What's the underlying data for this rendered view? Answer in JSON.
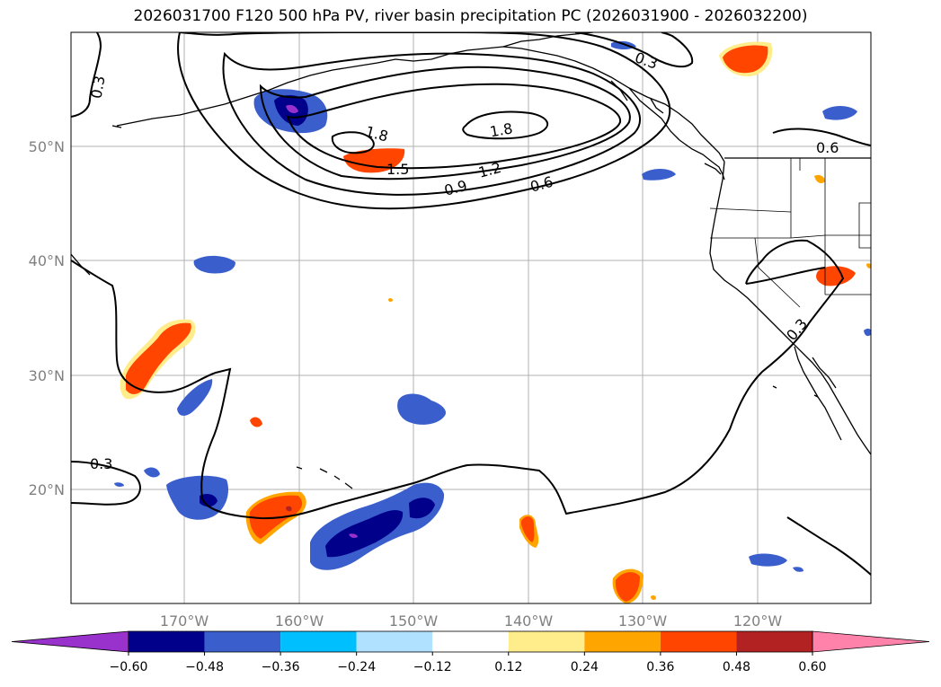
{
  "title": "2026031700 F120 500 hPa PV, river basin precipitation PC (2026031900 - 2026032200)",
  "lat_labels": [
    "50°N",
    "40°N",
    "30°N",
    "20°N"
  ],
  "lon_labels": [
    "170°W",
    "160°W",
    "150°W",
    "140°W",
    "130°W",
    "120°W"
  ],
  "contour_labels": [
    "0.3",
    "0.3",
    "0.3",
    "0.3",
    "1.8",
    "1.8",
    "1.5",
    "1.2",
    "0.9",
    "0.6",
    "0.6"
  ],
  "colorbar": {
    "ticks": [
      "−0.60",
      "−0.48",
      "−0.36",
      "−0.24",
      "−0.12",
      "0.12",
      "0.24",
      "0.36",
      "0.48",
      "0.60"
    ],
    "colors": {
      "under": "#9932cc",
      "bins": [
        "#00008b",
        "#3a5fcd",
        "#00bfff",
        "#b0e2ff",
        "#ffffff",
        "#ffec8b",
        "#ffa500",
        "#ff4500",
        "#b22222"
      ],
      "over": "#ff82ab"
    }
  }
}
